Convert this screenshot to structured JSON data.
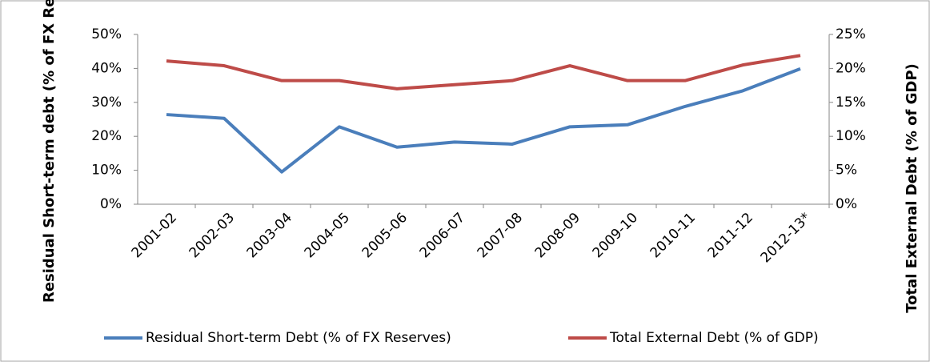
{
  "chart_data": {
    "type": "line",
    "y_label": "Residual Short-term debt (% of FX Reserves)",
    "y2_label": "Total External Debt (% of GDP)",
    "categories": [
      "2001-02",
      "2002-03",
      "2003-04",
      "2004-05",
      "2005-06",
      "2006-07",
      "2007-08",
      "2008-09",
      "2009-10",
      "2010-11",
      "2011-12",
      "2012-13*"
    ],
    "series": [
      {
        "name": "Residual Short-term Debt (% of FX Reserves)",
        "color": "#4a7ebb",
        "axis": "y",
        "values": [
          26.4,
          25.3,
          9.5,
          22.8,
          16.8,
          18.3,
          17.7,
          22.8,
          23.4,
          28.8,
          33.4,
          39.9
        ]
      },
      {
        "name": "Total External Debt (% of GDP)",
        "color": "#be4b48",
        "axis": "y2",
        "values": [
          21.1,
          20.4,
          18.2,
          18.2,
          17.0,
          17.6,
          18.2,
          20.4,
          18.2,
          18.2,
          20.5,
          21.9
        ]
      }
    ],
    "ylim": [
      0,
      50
    ],
    "yticks": [
      {
        "value": 0,
        "label": "0%"
      },
      {
        "value": 10,
        "label": "10%"
      },
      {
        "value": 20,
        "label": "20%"
      },
      {
        "value": 30,
        "label": "30%"
      },
      {
        "value": 40,
        "label": "40%"
      },
      {
        "value": 50,
        "label": "50%"
      }
    ],
    "y2lim": [
      0,
      25
    ],
    "y2ticks": [
      {
        "value": 0,
        "label": "0%"
      },
      {
        "value": 5,
        "label": "5%"
      },
      {
        "value": 10,
        "label": "10%"
      },
      {
        "value": 15,
        "label": "15%"
      },
      {
        "value": 20,
        "label": "20%"
      },
      {
        "value": 25,
        "label": "25%"
      }
    ],
    "grid": false,
    "legend": "bottom"
  }
}
